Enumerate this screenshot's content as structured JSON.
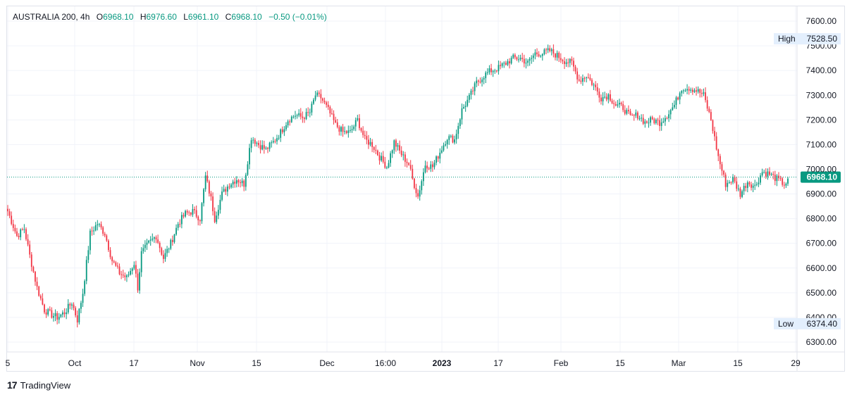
{
  "legend": {
    "symbol": "AUSTRALIA 200, 4h",
    "open_label": "O",
    "open": "6968.10",
    "high_label": "H",
    "high": "6976.60",
    "low_label": "L",
    "low": "6961.10",
    "close_label": "C",
    "close": "6968.10",
    "change": "−0.50 (−0.01%)"
  },
  "branding": {
    "logo": "17",
    "name": "TradingView"
  },
  "colors": {
    "up": "#089981",
    "down": "#f23645",
    "last_price_bg": "#089981",
    "grid": "#f0f3fa",
    "hilo_bg": "#e3effd"
  },
  "chart_data": {
    "type": "candlestick",
    "ylim": [
      6260,
      7660
    ],
    "y_ticks": [
      "7600.00",
      "7500.00",
      "7400.00",
      "7300.00",
      "7200.00",
      "7100.00",
      "7000.00",
      "6900.00",
      "6800.00",
      "6700.00",
      "6600.00",
      "6500.00",
      "6400.00",
      "6300.00"
    ],
    "y_tick_values": [
      7600,
      7500,
      7400,
      7300,
      7200,
      7100,
      7000,
      6900,
      6800,
      6700,
      6600,
      6500,
      6400,
      6300
    ],
    "x_ticks": [
      {
        "label": "5",
        "bold": false
      },
      {
        "label": "Oct",
        "bold": false
      },
      {
        "label": "17",
        "bold": false
      },
      {
        "label": "Nov",
        "bold": false
      },
      {
        "label": "15",
        "bold": false
      },
      {
        "label": "Dec",
        "bold": false
      },
      {
        "label": "16:00",
        "bold": false
      },
      {
        "label": "2023",
        "bold": true
      },
      {
        "label": "17",
        "bold": false
      },
      {
        "label": "Feb",
        "bold": false
      },
      {
        "label": "15",
        "bold": false
      },
      {
        "label": "Mar",
        "bold": false
      },
      {
        "label": "15",
        "bold": false
      },
      {
        "label": "29",
        "bold": false
      }
    ],
    "high_label": "High",
    "high_value": "7528.50",
    "high": 7528.5,
    "low_label": "Low",
    "low_value": "6374.40",
    "low": 6374.4,
    "last_price": 6968.1,
    "last_price_label": "6968.10",
    "anchors": [
      [
        0,
        6830
      ],
      [
        5,
        6730
      ],
      [
        9,
        6760
      ],
      [
        12,
        6650
      ],
      [
        16,
        6520
      ],
      [
        20,
        6430
      ],
      [
        24,
        6410
      ],
      [
        27,
        6400
      ],
      [
        31,
        6420
      ],
      [
        35,
        6460
      ],
      [
        38,
        6390
      ],
      [
        41,
        6500
      ],
      [
        45,
        6740
      ],
      [
        49,
        6780
      ],
      [
        53,
        6740
      ],
      [
        57,
        6630
      ],
      [
        61,
        6580
      ],
      [
        65,
        6560
      ],
      [
        69,
        6620
      ],
      [
        71,
        6520
      ],
      [
        73,
        6660
      ],
      [
        77,
        6700
      ],
      [
        81,
        6730
      ],
      [
        85,
        6640
      ],
      [
        89,
        6700
      ],
      [
        93,
        6780
      ],
      [
        97,
        6820
      ],
      [
        101,
        6830
      ],
      [
        105,
        6800
      ],
      [
        108,
        6970
      ],
      [
        111,
        6880
      ],
      [
        113,
        6800
      ],
      [
        117,
        6900
      ],
      [
        121,
        6940
      ],
      [
        125,
        6960
      ],
      [
        129,
        6940
      ],
      [
        133,
        7130
      ],
      [
        137,
        7100
      ],
      [
        141,
        7080
      ],
      [
        145,
        7110
      ],
      [
        149,
        7150
      ],
      [
        153,
        7200
      ],
      [
        157,
        7220
      ],
      [
        161,
        7210
      ],
      [
        165,
        7230
      ],
      [
        168,
        7300
      ],
      [
        171,
        7290
      ],
      [
        175,
        7240
      ],
      [
        179,
        7180
      ],
      [
        183,
        7150
      ],
      [
        187,
        7150
      ],
      [
        191,
        7200
      ],
      [
        195,
        7120
      ],
      [
        199,
        7100
      ],
      [
        203,
        7050
      ],
      [
        207,
        7010
      ],
      [
        211,
        7110
      ],
      [
        215,
        7060
      ],
      [
        219,
        7020
      ],
      [
        221,
        6960
      ],
      [
        224,
        6890
      ],
      [
        228,
        7020
      ],
      [
        232,
        7010
      ],
      [
        236,
        7070
      ],
      [
        240,
        7130
      ],
      [
        244,
        7120
      ],
      [
        248,
        7240
      ],
      [
        252,
        7290
      ],
      [
        256,
        7350
      ],
      [
        260,
        7380
      ],
      [
        264,
        7400
      ],
      [
        268,
        7410
      ],
      [
        272,
        7430
      ],
      [
        276,
        7450
      ],
      [
        280,
        7450
      ],
      [
        284,
        7430
      ],
      [
        288,
        7470
      ],
      [
        292,
        7470
      ],
      [
        296,
        7480
      ],
      [
        300,
        7460
      ],
      [
        304,
        7440
      ],
      [
        308,
        7430
      ],
      [
        312,
        7360
      ],
      [
        316,
        7380
      ],
      [
        320,
        7340
      ],
      [
        324,
        7290
      ],
      [
        328,
        7300
      ],
      [
        332,
        7260
      ],
      [
        336,
        7250
      ],
      [
        340,
        7210
      ],
      [
        344,
        7220
      ],
      [
        348,
        7190
      ],
      [
        352,
        7200
      ],
      [
        356,
        7190
      ],
      [
        360,
        7220
      ],
      [
        364,
        7260
      ],
      [
        368,
        7330
      ],
      [
        372,
        7330
      ],
      [
        376,
        7320
      ],
      [
        380,
        7300
      ],
      [
        384,
        7200
      ],
      [
        388,
        7050
      ],
      [
        392,
        6940
      ],
      [
        396,
        6960
      ],
      [
        400,
        6900
      ],
      [
        404,
        6950
      ],
      [
        408,
        6930
      ],
      [
        412,
        6990
      ],
      [
        416,
        6980
      ],
      [
        420,
        6960
      ],
      [
        424,
        6940
      ],
      [
        426,
        6950
      ]
    ]
  }
}
